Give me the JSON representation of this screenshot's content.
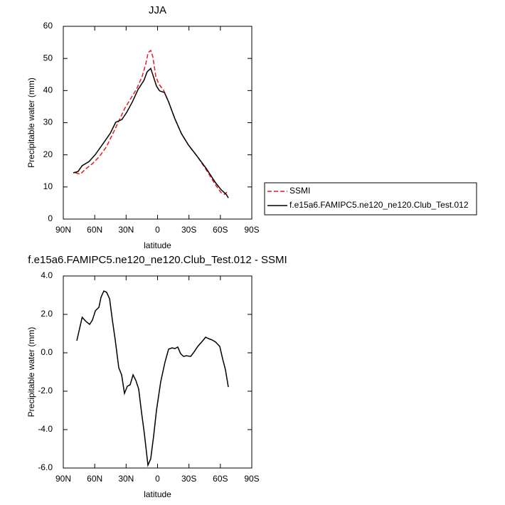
{
  "chart_data": [
    {
      "type": "line",
      "title": "JJA",
      "x_label": "latitude",
      "y_label": "Precipitable water (mm)",
      "xlim": [
        90,
        -90
      ],
      "xticks": [
        {
          "value": 90,
          "label": "90N"
        },
        {
          "value": 60,
          "label": "60N"
        },
        {
          "value": 30,
          "label": "30N"
        },
        0,
        {
          "value": -30,
          "label": "30S"
        },
        {
          "value": -60,
          "label": "60S"
        },
        {
          "value": -90,
          "label": "90S"
        }
      ],
      "ylim": [
        0,
        60
      ],
      "yticks": [
        0,
        10,
        20,
        30,
        40,
        50,
        60
      ],
      "legend": "outside right",
      "series": [
        {
          "name": "SSMI",
          "color": "#e8191f",
          "dash": true,
          "x": [
            78.5,
            73.7,
            69,
            62,
            55.4,
            48.6,
            41.8,
            36.3,
            31.6,
            26.2,
            20,
            14.6,
            11.2,
            9,
            6.5,
            4.5,
            1.7,
            -1,
            -5.8,
            -10.5,
            -16.6,
            -22.8,
            -29.6,
            -38.4,
            -46.6,
            -55.4,
            -60.8,
            -64.2,
            -67.6
          ],
          "values": [
            14.4,
            14,
            15.5,
            17.3,
            19.5,
            22.6,
            27.2,
            31,
            34.3,
            37.2,
            40.5,
            44.5,
            48.3,
            51.8,
            52.5,
            50.5,
            44.5,
            42.1,
            40.1,
            36.5,
            31.2,
            26.6,
            23,
            19.3,
            15.3,
            10.6,
            8.2,
            7.7,
            8.9
          ]
        },
        {
          "name": "f.e15a6.FAMIPC5.ne120_ne120.Club_Test.012",
          "color": "#000000",
          "dash": false,
          "x": [
            80.5,
            76,
            72,
            65.5,
            59.4,
            52,
            45,
            40,
            34,
            29.5,
            24,
            18.7,
            13,
            10,
            6.5,
            4.5,
            1,
            -2,
            -6.5,
            -10.5,
            -16.6,
            -22.8,
            -29.6,
            -38.4,
            -46.6,
            -55.4,
            -60.8,
            -65.6,
            -67.6
          ],
          "values": [
            14.4,
            14.8,
            16.6,
            17.9,
            20.1,
            23.5,
            26.8,
            30.1,
            31,
            33.2,
            36.5,
            40.3,
            43.2,
            45.8,
            46.9,
            44.9,
            41.4,
            39.9,
            39.4,
            36.5,
            31.2,
            26.6,
            23,
            19.3,
            15.7,
            11.3,
            9.1,
            7.7,
            6.6
          ]
        }
      ]
    },
    {
      "type": "line",
      "title": "f.e15a6.FAMIPC5.ne120_ne120.Club_Test.012 - SSMI",
      "x_label": "latitude",
      "y_label": "Precipitable water (mm)",
      "xlim": [
        90,
        -90
      ],
      "xticks": [
        {
          "value": 90,
          "label": "90N"
        },
        {
          "value": 60,
          "label": "60N"
        },
        {
          "value": 30,
          "label": "30N"
        },
        0,
        {
          "value": -30,
          "label": "30S"
        },
        {
          "value": -60,
          "label": "60S"
        },
        {
          "value": -90,
          "label": "90S"
        }
      ],
      "ylim": [
        -6,
        4
      ],
      "yticks": [
        {
          "value": -6,
          "label": "-6.0"
        },
        {
          "value": -4,
          "label": "-4.0"
        },
        {
          "value": -2,
          "label": "-2.0"
        },
        {
          "value": 0,
          "label": "0.0"
        },
        {
          "value": 2,
          "label": "2.0"
        },
        {
          "value": 4,
          "label": "4.0"
        }
      ],
      "series": [
        {
          "color": "#000000",
          "dash": false,
          "x": [
            77.1,
            72,
            68.3,
            64.9,
            62.2,
            59.4,
            56,
            54,
            51.3,
            48.6,
            45.8,
            43.1,
            40.4,
            37,
            34.3,
            31.6,
            28.9,
            26.2,
            23.4,
            20.7,
            18,
            15.3,
            12.6,
            9.2,
            6.5,
            3.7,
            1,
            -3,
            -7.1,
            -10.5,
            -13.9,
            -16.6,
            -19.3,
            -22,
            -24.8,
            -27.5,
            -31.6,
            -34.3,
            -38.4,
            -42.5,
            -45.9,
            -48.6,
            -52,
            -55.4,
            -59.4,
            -62.2,
            -64.9,
            -67.6
          ],
          "values": [
            0.63,
            1.85,
            1.63,
            1.48,
            1.7,
            2.19,
            2.37,
            2.89,
            3.22,
            3.15,
            2.81,
            1.7,
            0.67,
            -0.78,
            -1.15,
            -2.11,
            -1.74,
            -1.67,
            -1.15,
            -1.44,
            -1.89,
            -3.11,
            -4.22,
            -5.85,
            -5.52,
            -4.3,
            -3,
            -1.52,
            -0.48,
            0.19,
            0.26,
            0.22,
            0.3,
            -0.04,
            -0.19,
            -0.15,
            -0.19,
            0,
            0.33,
            0.59,
            0.81,
            0.74,
            0.67,
            0.56,
            0.33,
            -0.33,
            -0.89,
            -1.78
          ]
        }
      ]
    }
  ]
}
